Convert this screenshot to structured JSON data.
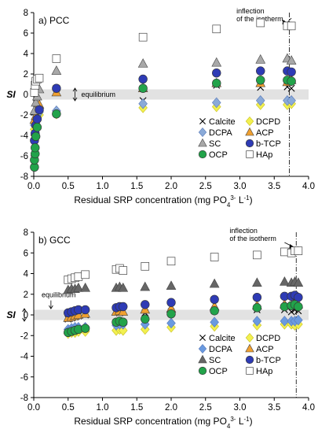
{
  "figure": {
    "x_tick_labels": [
      "0.0",
      "0.5",
      "1.0",
      "1.5",
      "2.0",
      "2.5",
      "3.0",
      "3.5",
      "4.0"
    ],
    "y_tick_labels": [
      "8",
      "6",
      "4",
      "2",
      "0",
      "-2",
      "-4",
      "-6",
      "-8"
    ]
  },
  "chart_data": [
    {
      "type": "scatter",
      "panel_label": "a) PCC",
      "xlabel_main": "Residual SRP concentration (mg PO",
      "xlabel_sub": "4",
      "xlabel_sup": "3-",
      "xlabel_tail": " L",
      "xlabel_sup2": "-1",
      "xlabel_end": ")",
      "ylabel": "SI",
      "xlim": [
        0,
        4
      ],
      "ylim": [
        -8,
        8
      ],
      "equilibrium_band": [
        -0.5,
        0.5
      ],
      "equilibrium_label": "equilibrium",
      "inflection_label_line1": "inflection",
      "inflection_label_line2": "of the isotherm",
      "inflection_x": 3.72,
      "legend_position": "bottom-right",
      "series": [
        {
          "name": "Calcite",
          "marker": "x",
          "color": "#000000",
          "points": [
            [
              0.01,
              -3.2
            ],
            [
              0.03,
              -2.6
            ],
            [
              0.05,
              -2.2
            ],
            [
              0.08,
              -1.6
            ],
            [
              0.33,
              0.6
            ],
            [
              1.59,
              -0.6
            ],
            [
              2.66,
              0.9
            ],
            [
              3.3,
              0.7
            ],
            [
              3.69,
              0.75
            ],
            [
              3.75,
              0.6
            ]
          ]
        },
        {
          "name": "DCPD",
          "marker": "diamond",
          "color": "#f2f050",
          "points": [
            [
              0.01,
              -3.4
            ],
            [
              0.03,
              -2.9
            ],
            [
              0.05,
              -2.3
            ],
            [
              0.08,
              -2.0
            ],
            [
              0.33,
              -1.9
            ],
            [
              1.59,
              -1.3
            ],
            [
              2.66,
              -1.2
            ],
            [
              3.3,
              -1.0
            ],
            [
              3.69,
              -1.0
            ],
            [
              3.75,
              -0.9
            ]
          ]
        },
        {
          "name": "DCPA",
          "marker": "diamond",
          "color": "#8aaad8",
          "points": [
            [
              0.01,
              -3.0
            ],
            [
              0.03,
              -2.5
            ],
            [
              0.05,
              -2.0
            ],
            [
              0.08,
              -1.7
            ],
            [
              0.33,
              -1.6
            ],
            [
              1.59,
              -0.9
            ],
            [
              2.66,
              -0.8
            ],
            [
              3.3,
              -0.6
            ],
            [
              3.69,
              -0.6
            ],
            [
              3.75,
              -0.6
            ]
          ]
        },
        {
          "name": "ACP",
          "marker": "triangle",
          "color": "#f0a030",
          "points": [
            [
              0.01,
              -2.5
            ],
            [
              0.03,
              -2.1
            ],
            [
              0.05,
              -1.5
            ],
            [
              0.08,
              -1.0
            ],
            [
              0.33,
              0.2
            ],
            [
              1.59,
              0.6
            ],
            [
              2.66,
              1.1
            ],
            [
              3.3,
              1.1
            ],
            [
              3.69,
              1.2
            ],
            [
              3.75,
              1.4
            ]
          ]
        },
        {
          "name": "SC",
          "marker": "triangle",
          "color": "#a8a8a8",
          "points": [
            [
              0.01,
              -1.6
            ],
            [
              0.03,
              -0.8
            ],
            [
              0.05,
              -0.2
            ],
            [
              0.08,
              0.5
            ],
            [
              0.33,
              2.3
            ],
            [
              1.59,
              3.0
            ],
            [
              2.66,
              3.1
            ],
            [
              3.3,
              3.4
            ],
            [
              3.69,
              3.5
            ],
            [
              3.75,
              3.3
            ]
          ]
        },
        {
          "name": "b-TCP",
          "marker": "circle",
          "color": "#2e3bb5",
          "points": [
            [
              0.01,
              -4.5
            ],
            [
              0.02,
              -3.8
            ],
            [
              0.03,
              -3.0
            ],
            [
              0.05,
              -2.4
            ],
            [
              0.08,
              -1.5
            ],
            [
              0.33,
              0.6
            ],
            [
              1.59,
              1.5
            ],
            [
              2.66,
              2.1
            ],
            [
              3.3,
              2.3
            ],
            [
              3.69,
              2.3
            ],
            [
              3.75,
              2.2
            ]
          ]
        },
        {
          "name": "OCP",
          "marker": "circle",
          "color": "#22a34a",
          "points": [
            [
              0.01,
              -7.1
            ],
            [
              0.01,
              -6.4
            ],
            [
              0.02,
              -5.8
            ],
            [
              0.02,
              -5.2
            ],
            [
              0.03,
              -4.1
            ],
            [
              0.05,
              -3.2
            ],
            [
              0.33,
              -1.9
            ],
            [
              1.59,
              0.6
            ],
            [
              2.66,
              1.1
            ],
            [
              3.3,
              1.4
            ],
            [
              3.69,
              1.4
            ],
            [
              3.75,
              1.3
            ]
          ]
        },
        {
          "name": "HAp",
          "marker": "square",
          "color": "#ffffff",
          "points": [
            [
              0.01,
              0.2
            ],
            [
              0.02,
              0.9
            ],
            [
              0.03,
              1.3
            ],
            [
              0.05,
              1.5
            ],
            [
              0.08,
              1.6
            ],
            [
              0.33,
              3.5
            ],
            [
              1.59,
              5.6
            ],
            [
              2.66,
              6.4
            ],
            [
              3.3,
              7.0
            ],
            [
              3.69,
              6.7
            ],
            [
              3.75,
              6.7
            ]
          ]
        }
      ]
    },
    {
      "type": "scatter",
      "panel_label": "b) GCC",
      "xlabel_main": "Residual SRP concentration (mg PO",
      "xlabel_sub": "4",
      "xlabel_sup": "3-",
      "xlabel_tail": " L",
      "xlabel_sup2": "-1",
      "xlabel_end": ")",
      "ylabel": "SI",
      "xlim": [
        0,
        4
      ],
      "ylim": [
        -8,
        8
      ],
      "equilibrium_band": [
        -0.5,
        0.5
      ],
      "equilibrium_label": "equilibrium",
      "inflection_label_line1": "inflection",
      "inflection_label_line2": "of the isotherm",
      "inflection_x": 3.82,
      "legend_position": "bottom-right",
      "series": [
        {
          "name": "Calcite",
          "marker": "x",
          "color": "#000000",
          "points": [
            [
              0.5,
              -0.4
            ],
            [
              0.55,
              -0.3
            ],
            [
              0.6,
              -0.2
            ],
            [
              0.65,
              -0.1
            ],
            [
              0.75,
              0.0
            ],
            [
              1.2,
              0.3
            ],
            [
              1.25,
              0.2
            ],
            [
              1.3,
              0.3
            ],
            [
              1.62,
              0.2
            ],
            [
              2.0,
              0.3
            ],
            [
              2.63,
              0.4
            ],
            [
              3.25,
              0.5
            ],
            [
              3.65,
              0.5
            ],
            [
              3.75,
              0.3
            ],
            [
              3.8,
              0.5
            ],
            [
              3.85,
              0.4
            ]
          ]
        },
        {
          "name": "DCPD",
          "marker": "diamond",
          "color": "#f2f050",
          "points": [
            [
              0.5,
              -1.8
            ],
            [
              0.55,
              -1.7
            ],
            [
              0.6,
              -1.7
            ],
            [
              0.65,
              -1.6
            ],
            [
              0.75,
              -1.6
            ],
            [
              1.2,
              -1.5
            ],
            [
              1.25,
              -1.4
            ],
            [
              1.3,
              -1.5
            ],
            [
              1.62,
              -1.4
            ],
            [
              2.0,
              -1.2
            ],
            [
              2.63,
              -1.1
            ],
            [
              3.25,
              -1.0
            ],
            [
              3.65,
              -0.9
            ],
            [
              3.75,
              -0.9
            ],
            [
              3.8,
              -1.0
            ],
            [
              3.85,
              -0.9
            ]
          ]
        },
        {
          "name": "DCPA",
          "marker": "diamond",
          "color": "#6a9ae0",
          "points": [
            [
              0.5,
              -1.4
            ],
            [
              0.55,
              -1.3
            ],
            [
              0.6,
              -1.2
            ],
            [
              0.65,
              -1.2
            ],
            [
              0.75,
              -1.2
            ],
            [
              1.2,
              -1.0
            ],
            [
              1.25,
              -0.9
            ],
            [
              1.3,
              -0.9
            ],
            [
              1.62,
              -0.9
            ],
            [
              2.0,
              -0.8
            ],
            [
              2.63,
              -0.7
            ],
            [
              3.25,
              -0.6
            ],
            [
              3.65,
              -0.6
            ],
            [
              3.75,
              -0.6
            ],
            [
              3.8,
              -0.6
            ],
            [
              3.85,
              -0.5
            ]
          ]
        },
        {
          "name": "ACP",
          "marker": "triangle",
          "color": "#f0a030",
          "points": [
            [
              0.5,
              -0.3
            ],
            [
              0.55,
              -0.2
            ],
            [
              0.6,
              -0.1
            ],
            [
              0.65,
              0.0
            ],
            [
              0.75,
              0.1
            ],
            [
              1.2,
              0.3
            ],
            [
              1.25,
              0.4
            ],
            [
              1.3,
              0.3
            ],
            [
              1.62,
              0.5
            ],
            [
              2.0,
              0.6
            ],
            [
              2.63,
              0.8
            ],
            [
              3.25,
              0.9
            ],
            [
              3.65,
              1.0
            ],
            [
              3.75,
              0.9
            ],
            [
              3.8,
              1.1
            ],
            [
              3.85,
              1.0
            ]
          ]
        },
        {
          "name": "SC",
          "marker": "triangle",
          "color": "#666666",
          "points": [
            [
              0.5,
              2.4
            ],
            [
              0.55,
              2.5
            ],
            [
              0.6,
              2.5
            ],
            [
              0.65,
              2.6
            ],
            [
              0.75,
              2.6
            ],
            [
              1.2,
              2.6
            ],
            [
              1.25,
              2.7
            ],
            [
              1.3,
              2.6
            ],
            [
              1.62,
              2.7
            ],
            [
              2.0,
              2.8
            ],
            [
              2.63,
              3.0
            ],
            [
              3.25,
              3.1
            ],
            [
              3.65,
              3.2
            ],
            [
              3.75,
              3.1
            ],
            [
              3.8,
              3.2
            ],
            [
              3.85,
              3.1
            ]
          ]
        },
        {
          "name": "b-TCP",
          "marker": "circle",
          "color": "#2e3bb5",
          "points": [
            [
              0.5,
              0.2
            ],
            [
              0.55,
              0.3
            ],
            [
              0.6,
              0.4
            ],
            [
              0.65,
              0.5
            ],
            [
              0.75,
              0.5
            ],
            [
              1.2,
              0.7
            ],
            [
              1.25,
              0.8
            ],
            [
              1.3,
              0.8
            ],
            [
              1.62,
              1.0
            ],
            [
              2.0,
              1.2
            ],
            [
              2.63,
              1.5
            ],
            [
              3.25,
              1.7
            ],
            [
              3.65,
              1.8
            ],
            [
              3.75,
              1.8
            ],
            [
              3.8,
              1.9
            ],
            [
              3.85,
              1.7
            ]
          ]
        },
        {
          "name": "OCP",
          "marker": "circle",
          "color": "#22a34a",
          "points": [
            [
              0.5,
              -1.7
            ],
            [
              0.55,
              -1.6
            ],
            [
              0.6,
              -1.5
            ],
            [
              0.65,
              -1.4
            ],
            [
              0.75,
              -1.3
            ],
            [
              1.2,
              -0.7
            ],
            [
              1.25,
              -0.6
            ],
            [
              1.3,
              -0.7
            ],
            [
              1.62,
              -0.4
            ],
            [
              2.0,
              0.1
            ],
            [
              2.63,
              0.4
            ],
            [
              3.25,
              0.7
            ],
            [
              3.65,
              0.8
            ],
            [
              3.75,
              0.9
            ],
            [
              3.8,
              1.0
            ],
            [
              3.85,
              0.8
            ]
          ]
        },
        {
          "name": "HAp",
          "marker": "square",
          "color": "#ffffff",
          "points": [
            [
              0.5,
              3.4
            ],
            [
              0.55,
              3.5
            ],
            [
              0.6,
              3.6
            ],
            [
              0.65,
              3.7
            ],
            [
              0.75,
              3.9
            ],
            [
              1.2,
              4.4
            ],
            [
              1.25,
              4.5
            ],
            [
              1.3,
              4.3
            ],
            [
              1.62,
              4.7
            ],
            [
              2.0,
              5.2
            ],
            [
              2.63,
              5.6
            ],
            [
              3.25,
              5.8
            ],
            [
              3.65,
              6.1
            ],
            [
              3.75,
              6.0
            ],
            [
              3.8,
              6.2
            ],
            [
              3.85,
              6.2
            ]
          ]
        }
      ]
    }
  ]
}
